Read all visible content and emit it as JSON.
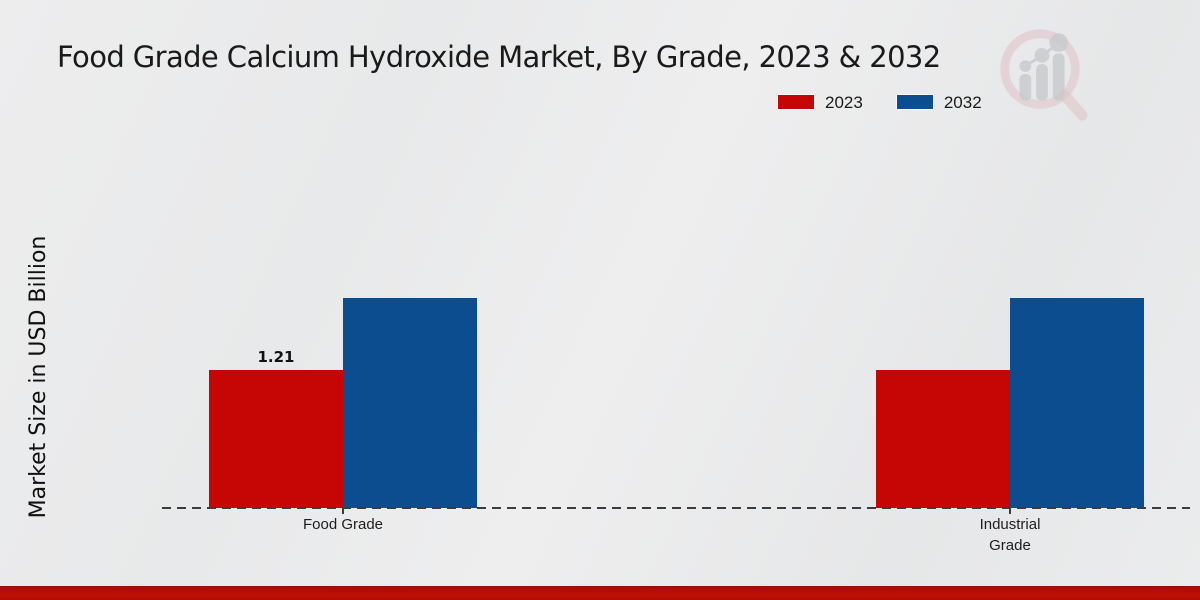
{
  "chart_data": {
    "type": "bar",
    "title": "Food Grade Calcium Hydroxide Market, By Grade, 2023 & 2032",
    "ylabel": "Market Size in USD Billion",
    "categories": [
      "Food Grade",
      "Industrial Grade"
    ],
    "series": [
      {
        "name": "2023",
        "color": "#c50604",
        "values": [
          1.21,
          1.21
        ]
      },
      {
        "name": "2032",
        "color": "#0b4d8e",
        "values": [
          1.84,
          1.84
        ]
      }
    ],
    "data_labels": [
      {
        "series": "2023",
        "category": "Food Grade",
        "text": "1.21"
      }
    ],
    "ylim": [
      0,
      2.2
    ],
    "grid": false,
    "legend_position": "top-right",
    "baseline_style": "dashed",
    "xlabel": ""
  },
  "branding": {
    "logo": "magnifier-bar-chart-watermark",
    "footer_color": "#b30e05"
  },
  "colors": {
    "background": "#e9eaeb",
    "accent_red": "#c50604",
    "accent_blue": "#0b4d8e"
  }
}
